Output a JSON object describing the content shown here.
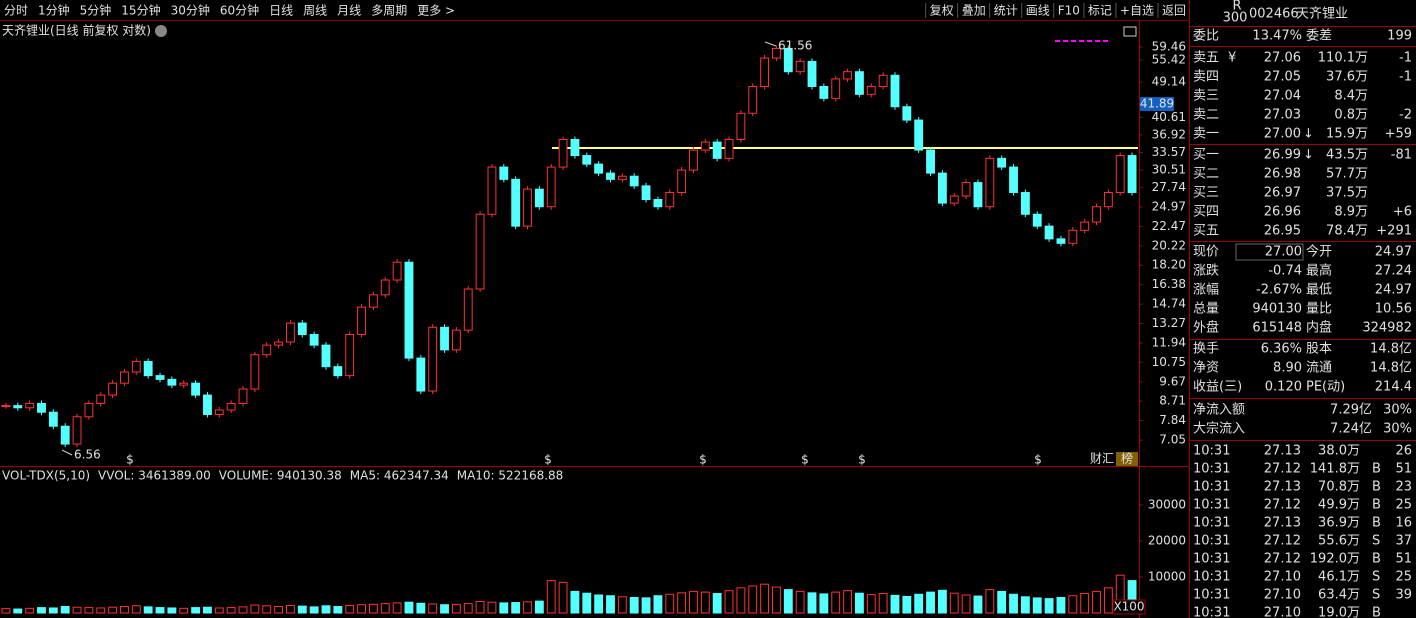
{
  "toolbar": {
    "periods": [
      "分时",
      "1分钟",
      "5分钟",
      "15分钟",
      "30分钟",
      "60分钟",
      "日线",
      "周线",
      "月线",
      "多周期",
      "更多 >"
    ],
    "active_period": 6,
    "actions": [
      "复权",
      "叠加",
      "统计",
      "画线",
      "F10",
      "标记",
      "+自选",
      "返回"
    ]
  },
  "price_chart": {
    "title": "天齐锂业(日线 前复权 对数)",
    "log_scale": true,
    "ylim": [
      6.26,
      61.76
    ],
    "yticks": [
      59.46,
      55.42,
      49.14,
      40.61,
      36.92,
      33.57,
      30.51,
      27.74,
      24.97,
      22.47,
      20.22,
      {
        "value": 18.2,
        "label": "18.20"
      },
      16.38,
      14.74,
      13.27,
      11.94,
      10.75,
      9.67,
      8.71,
      7.84,
      7.05
    ],
    "price_tag": 41.89,
    "high_label": 61.56,
    "low_label": 6.56,
    "up_color": "#ff3232",
    "down_color": "#54ffff",
    "event_marker": "$",
    "icons": [
      "财汇",
      "榜"
    ],
    "closes": [
      8.5,
      8.4,
      8.6,
      8.2,
      7.6,
      6.9,
      8.0,
      8.6,
      9.0,
      9.6,
      10.2,
      10.8,
      10.0,
      9.8,
      9.5,
      9.6,
      9.0,
      8.1,
      8.3,
      8.6,
      9.3,
      11.2,
      11.8,
      12.0,
      13.3,
      12.5,
      11.8,
      10.5,
      10.0,
      12.5,
      14.5,
      15.5,
      16.8,
      18.5,
      11.0,
      9.2,
      13.0,
      11.5,
      12.8,
      16.0,
      24.0,
      31.0,
      29.0,
      22.5,
      27.5,
      25.0,
      31.0,
      36.0,
      33.0,
      31.5,
      30.0,
      29.0,
      29.5,
      28.0,
      26.0,
      25.0,
      27.0,
      30.5,
      34.0,
      35.5,
      32.5,
      36.0,
      41.5,
      48.0,
      56.0,
      59.0,
      52.0,
      55.0,
      48.0,
      45.0,
      50.0,
      52.0,
      46.0,
      48.0,
      51.0,
      43.0,
      40.0,
      34.0,
      30.0,
      25.5,
      26.5,
      28.5,
      25.0,
      32.5,
      31.0,
      27.0,
      24.0,
      22.5,
      21.0,
      20.5,
      22.0,
      23.0,
      25.0,
      27.0,
      33.0,
      27.0
    ]
  },
  "volume_chart": {
    "header": [
      {
        "text": "VOL-TDX(5,10)",
        "color": "#e0e0e0"
      },
      {
        "text": "VVOL: 3461389.00",
        "color": "#e0e0e0"
      },
      {
        "text": "VOLUME: 940130.38",
        "color": "#e6e600"
      },
      {
        "text": "MA5: 462347.34",
        "color": "#e6e600"
      },
      {
        "text": "MA10: 522168.88",
        "color": "#ff40ff"
      }
    ],
    "ylim": [
      0,
      36944
    ],
    "yticks": [
      10000,
      20000,
      30000
    ],
    "unit": "X100",
    "values": [
      1200,
      1100,
      1300,
      1500,
      1400,
      1800,
      1600,
      1500,
      1400,
      1600,
      1800,
      2000,
      1700,
      1500,
      1400,
      1300,
      1500,
      1600,
      1400,
      1500,
      1700,
      2200,
      2000,
      1800,
      2100,
      1900,
      1700,
      2000,
      1800,
      2100,
      2300,
      2400,
      2600,
      2800,
      3000,
      2700,
      2500,
      2300,
      2400,
      2600,
      3200,
      3000,
      2800,
      2900,
      3100,
      3300,
      9000,
      8500,
      6000,
      5500,
      5000,
      4800,
      4500,
      4300,
      4200,
      4800,
      5200,
      5600,
      6000,
      5800,
      5400,
      6200,
      7000,
      7500,
      8000,
      7200,
      6500,
      6000,
      5600,
      5300,
      5800,
      6200,
      5500,
      5100,
      5400,
      4900,
      4600,
      5200,
      5800,
      6300,
      5500,
      5000,
      4700,
      6500,
      6000,
      5200,
      4500,
      4200,
      4000,
      4300,
      4800,
      5400,
      6000,
      7000,
      10500,
      9000
    ]
  },
  "quote": {
    "code": "002466",
    "name": "天齐锂业",
    "badge_top": "R",
    "badge_bottom": "300",
    "ratio": [
      {
        "label": "委比",
        "value": "13.47%",
        "color": "#ff4040"
      },
      {
        "label": "委差",
        "value": "199",
        "color": "#ff4040"
      }
    ],
    "asks": [
      {
        "label": "卖五",
        "flag": "¥",
        "price": "27.06",
        "volume": "110.1万",
        "change": "-1"
      },
      {
        "label": "卖四",
        "price": "27.05",
        "volume": "37.6万",
        "change": "-1"
      },
      {
        "label": "卖三",
        "price": "27.04",
        "volume": "8.4万"
      },
      {
        "label": "卖二",
        "price": "27.03",
        "volume": "0.8万",
        "change": "-2"
      },
      {
        "label": "卖一",
        "price": "27.00",
        "arrow": "↓",
        "volume": "15.9万",
        "change": "+59"
      }
    ],
    "bids": [
      {
        "label": "买一",
        "price": "26.99",
        "arrow": "↓",
        "volume": "43.5万",
        "change": "-81"
      },
      {
        "label": "买二",
        "price": "26.98",
        "volume": "57.7万"
      },
      {
        "label": "买三",
        "price": "26.97",
        "volume": "37.5万"
      },
      {
        "label": "买四",
        "price": "26.96",
        "volume": "8.9万",
        "change": "+6"
      },
      {
        "label": "买五",
        "price": "26.95",
        "volume": "78.4万",
        "change": "+291"
      }
    ],
    "stats": [
      [
        {
          "label": "现价",
          "value": "27.00",
          "color": "#00e600"
        },
        {
          "label": "今开",
          "value": "24.97",
          "color": "#00e600"
        }
      ],
      [
        {
          "label": "涨跌",
          "value": "-0.74",
          "color": "#00e600"
        },
        {
          "label": "最高",
          "value": "27.24",
          "color": "#00e600"
        }
      ],
      [
        {
          "label": "涨幅",
          "value": "-2.67%",
          "color": "#00e600"
        },
        {
          "label": "最低",
          "value": "24.97",
          "color": "#00e600"
        }
      ],
      [
        {
          "label": "总量",
          "value": "940130",
          "color": "#e6e600"
        },
        {
          "label": "量比",
          "value": "10.56",
          "color": "#ff40ff"
        }
      ],
      [
        {
          "label": "外盘",
          "value": "615148",
          "color": "#ff4040"
        },
        {
          "label": "内盘",
          "value": "324982",
          "color": "#00e600"
        }
      ],
      [
        {
          "label": "换手",
          "value": "6.36%",
          "color": "#e0e0e0"
        },
        {
          "label": "股本",
          "value": "14.8亿",
          "color": "#e0e0e0"
        }
      ],
      [
        {
          "label": "净资",
          "value": "8.90",
          "color": "#e0e0e0"
        },
        {
          "label": "流通",
          "value": "14.8亿",
          "color": "#e0e0e0"
        }
      ],
      [
        {
          "label": "收益(三)",
          "value": "0.120",
          "color": "#e0e0e0"
        },
        {
          "label": "PE(动)",
          "value": "214.4",
          "color": "#e0e0e0"
        }
      ]
    ],
    "flows": [
      {
        "label": "净流入额",
        "value": "7.29亿",
        "pct": "30%"
      },
      {
        "label": "大宗流入",
        "value": "7.24亿",
        "pct": "30%"
      }
    ],
    "trades": [
      {
        "time": "10:31",
        "price": "27.13",
        "volume": "38.0万",
        "count": "26"
      },
      {
        "time": "10:31",
        "price": "27.12",
        "volume": "141.8万",
        "side": "B",
        "count": "51",
        "highlight": true
      },
      {
        "time": "10:31",
        "price": "27.13",
        "volume": "70.8万",
        "side": "B",
        "count": "23"
      },
      {
        "time": "10:31",
        "price": "27.12",
        "volume": "49.9万",
        "side": "B",
        "count": "25"
      },
      {
        "time": "10:31",
        "price": "27.13",
        "volume": "36.9万",
        "side": "B",
        "count": "16"
      },
      {
        "time": "10:31",
        "price": "27.12",
        "volume": "55.6万",
        "side": "S",
        "count": "37"
      },
      {
        "time": "10:31",
        "price": "27.12",
        "volume": "192.0万",
        "side": "B",
        "count": "51",
        "highlight": true
      },
      {
        "time": "10:31",
        "price": "27.10",
        "volume": "46.1万",
        "side": "S",
        "count": "25"
      },
      {
        "time": "10:31",
        "price": "27.10",
        "volume": "63.4万",
        "side": "S",
        "count": "39"
      },
      {
        "time": "10:31",
        "price": "27.10",
        "volume": "19.0万",
        "side": "B"
      }
    ]
  }
}
